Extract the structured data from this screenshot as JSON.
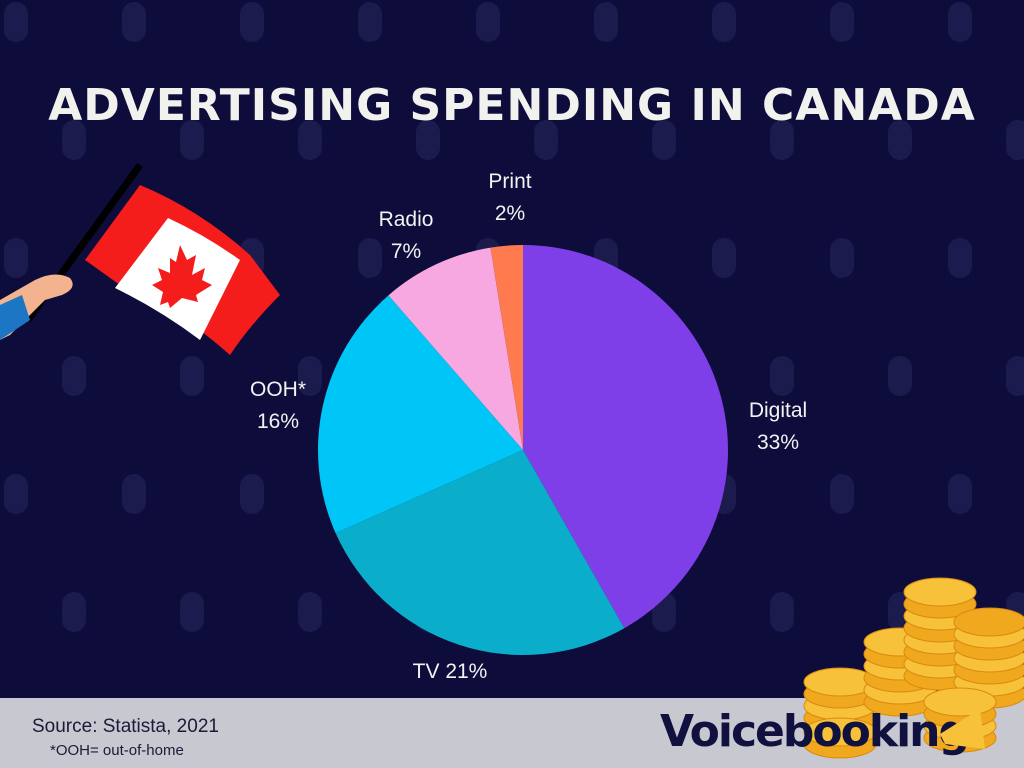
{
  "chart_data": {
    "type": "pie",
    "title": "ADVERTISING SPENDING IN CANADA",
    "slices": [
      {
        "label": "Digital",
        "value": 33,
        "display": "33%",
        "color": "#7f3fe8"
      },
      {
        "label": "TV",
        "value": 21,
        "display": "21%",
        "color": "#0aaecb"
      },
      {
        "label": "OOH*",
        "value": 16,
        "display": "16%",
        "color": "#00c6f7"
      },
      {
        "label": "Radio",
        "value": 7,
        "display": "7%",
        "color": "#f8a8e0"
      },
      {
        "label": "Print",
        "value": 2,
        "display": "2%",
        "color": "#ff7a4f"
      }
    ],
    "start": "top",
    "direction": "clockwise"
  },
  "footer": {
    "source": "Source: Statista, 2021",
    "note": "*OOH= out-of-home",
    "brand": "Voicebooking"
  },
  "colors": {
    "background": "#0d0c3b",
    "footer": "#c8c8d0",
    "accent": "#f7c23a"
  }
}
